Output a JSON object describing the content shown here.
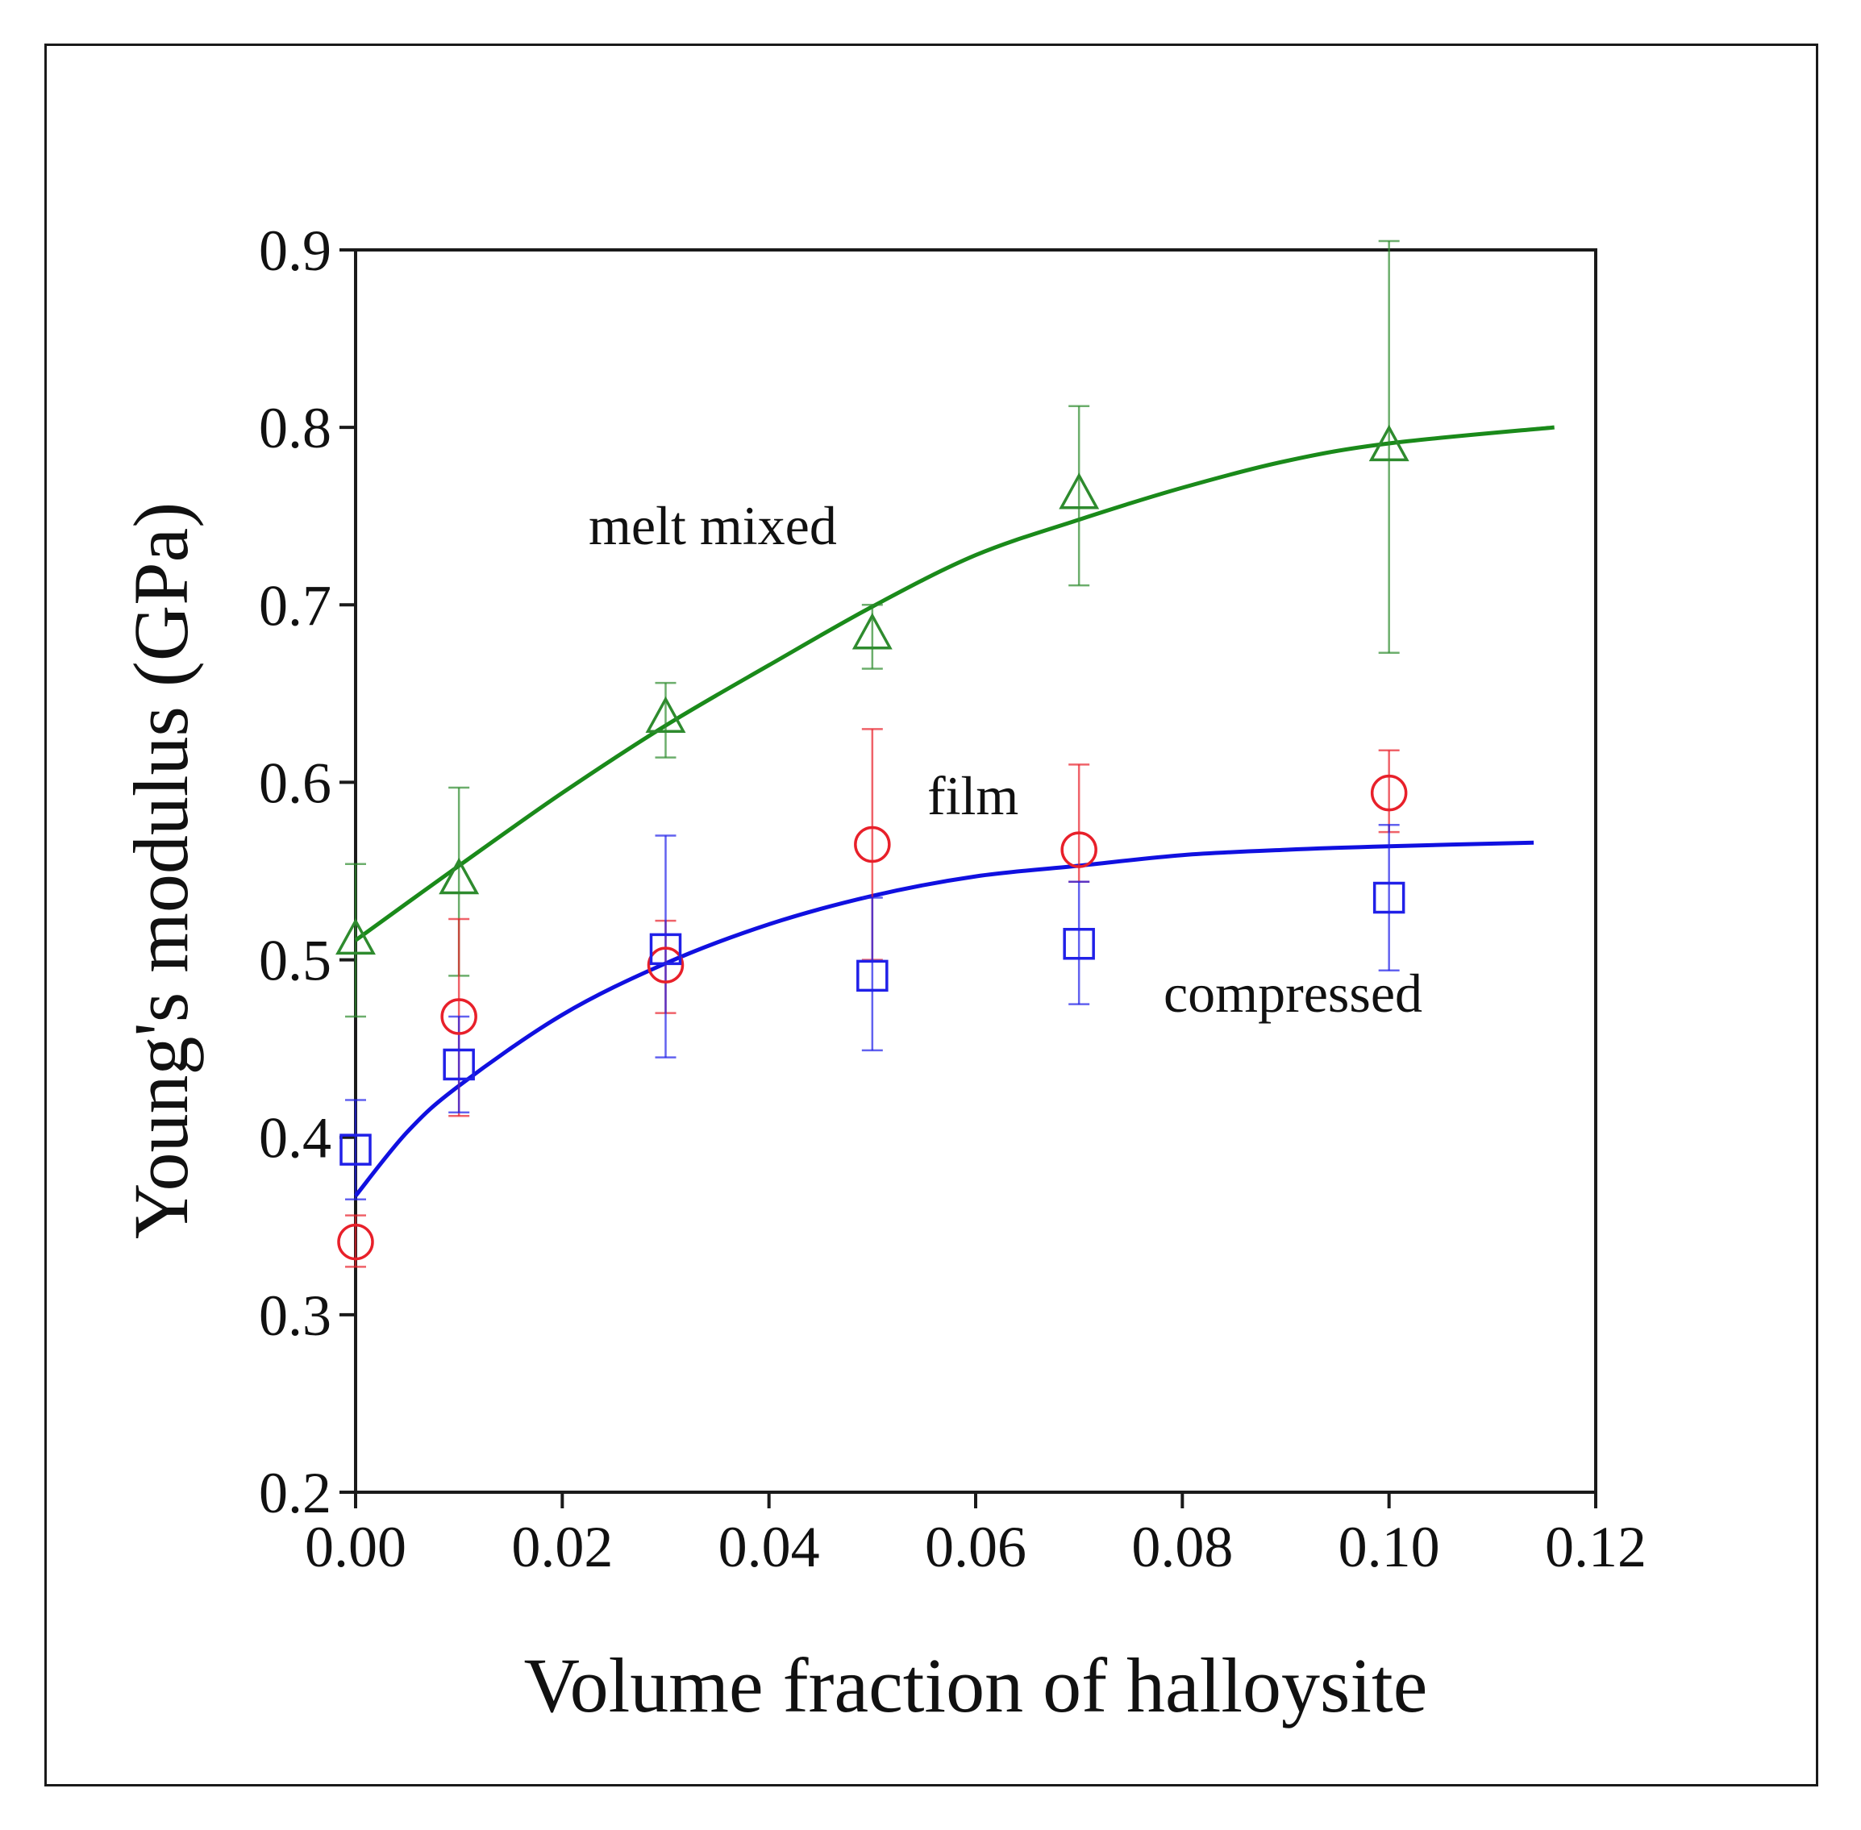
{
  "chart_data": {
    "type": "scatter",
    "title": "",
    "xlabel": "Volume fraction of halloysite",
    "ylabel": "Young's modulus (GPa)",
    "xlim": [
      0,
      0.12
    ],
    "ylim": [
      0.2,
      0.9
    ],
    "grid": false,
    "x_ticks": [
      "0.00",
      "0.02",
      "0.04",
      "0.06",
      "0.08",
      "0.10",
      "0.12"
    ],
    "y_ticks": [
      "0.2",
      "0.3",
      "0.4",
      "0.5",
      "0.6",
      "0.7",
      "0.8",
      "0.9"
    ],
    "annotations": {
      "melt_mixed": "melt mixed",
      "film": "film",
      "compressed": "compressed"
    },
    "series": [
      {
        "name": "melt mixed",
        "marker": "triangle",
        "color": "#2e8b2e",
        "x": [
          0.0,
          0.01,
          0.03,
          0.05,
          0.07,
          0.1
        ],
        "y": [
          0.511,
          0.545,
          0.636,
          0.683,
          0.762,
          0.789
        ],
        "err_high": [
          0.554,
          0.597,
          0.656,
          0.7,
          0.812,
          0.905
        ],
        "err_low": [
          0.468,
          0.491,
          0.614,
          0.664,
          0.711,
          0.673
        ]
      },
      {
        "name": "film",
        "marker": "circle",
        "color": "#e8202a",
        "x": [
          0.0,
          0.01,
          0.03,
          0.05,
          0.07,
          0.1
        ],
        "y": [
          0.341,
          0.468,
          0.497,
          0.565,
          0.562,
          0.594
        ],
        "err_high": [
          0.356,
          0.523,
          0.522,
          0.63,
          0.61,
          0.618
        ],
        "err_low": [
          0.327,
          0.412,
          0.47,
          0.5,
          0.544,
          0.572
        ]
      },
      {
        "name": "compressed",
        "marker": "square",
        "color": "#2020e8",
        "x": [
          0.0,
          0.01,
          0.03,
          0.05,
          0.07,
          0.1
        ],
        "y": [
          0.393,
          0.441,
          0.506,
          0.491,
          0.509,
          0.535
        ],
        "err_high": [
          0.421,
          0.468,
          0.57,
          0.535,
          0.544,
          0.576
        ],
        "err_low": [
          0.365,
          0.414,
          0.445,
          0.449,
          0.475,
          0.494
        ]
      }
    ],
    "fits": [
      {
        "name": "melt mixed fit",
        "color": "#1a8a1a",
        "x": [
          0.0,
          0.01,
          0.02,
          0.03,
          0.04,
          0.05,
          0.06,
          0.07,
          0.08,
          0.09,
          0.1,
          0.116
        ],
        "y": [
          0.511,
          0.553,
          0.594,
          0.632,
          0.666,
          0.699,
          0.728,
          0.748,
          0.766,
          0.781,
          0.791,
          0.8
        ]
      },
      {
        "name": "compressed fit",
        "color": "#1010e0",
        "x": [
          0.0,
          0.005,
          0.01,
          0.02,
          0.03,
          0.04,
          0.05,
          0.06,
          0.07,
          0.08,
          0.09,
          0.1,
          0.114
        ],
        "y": [
          0.367,
          0.403,
          0.429,
          0.469,
          0.498,
          0.52,
          0.536,
          0.547,
          0.553,
          0.559,
          0.562,
          0.564,
          0.566
        ]
      }
    ]
  }
}
